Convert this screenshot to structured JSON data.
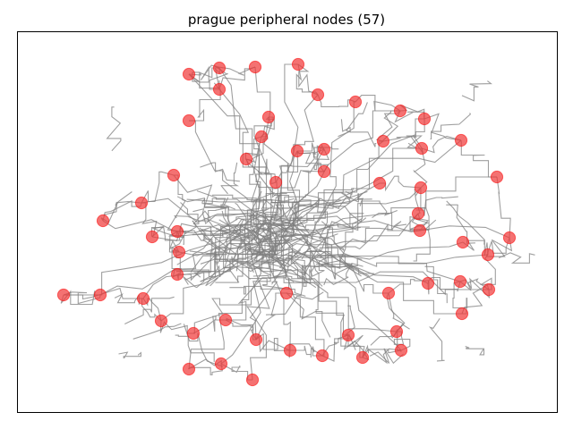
{
  "figure": {
    "title": "prague peripheral nodes (57)",
    "node_color": "#f03c3c",
    "edge_color": "#7f7f7f",
    "axes_visible": false
  }
}
